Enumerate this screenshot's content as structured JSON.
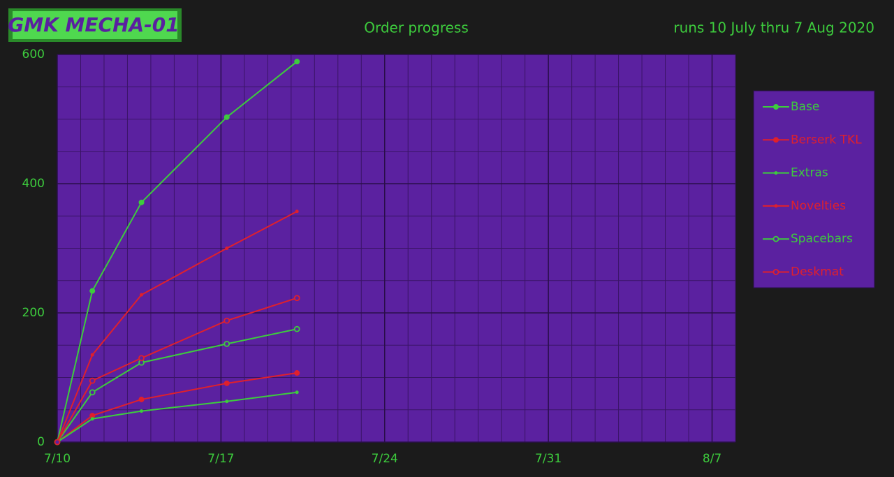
{
  "header": {
    "badge": "GMK MECHA-01"
  },
  "chart_data": {
    "type": "line",
    "title": "Order progress",
    "subtitle": "runs 10 July thru 7 Aug 2020",
    "x": [
      0,
      1.5,
      3.6,
      7.25,
      10.25
    ],
    "xlim": [
      0,
      29
    ],
    "xticks": [
      {
        "value": 0,
        "label": "7/10"
      },
      {
        "value": 7,
        "label": "7/17"
      },
      {
        "value": 14,
        "label": "7/24"
      },
      {
        "value": 21,
        "label": "7/31"
      },
      {
        "value": 28,
        "label": "8/7"
      }
    ],
    "xminorticks": [
      1,
      2,
      3,
      4,
      5,
      6,
      8,
      9,
      10,
      11,
      12,
      13,
      15,
      16,
      17,
      18,
      19,
      20,
      22,
      23,
      24,
      25,
      26,
      27,
      29
    ],
    "ylim": [
      0,
      600
    ],
    "yticks": [
      0,
      200,
      400,
      600
    ],
    "yminorticks": [
      50,
      100,
      150,
      250,
      300,
      350,
      450,
      500,
      550
    ],
    "grid": true,
    "legend": "right",
    "series": [
      {
        "name": "Base",
        "color": "#3dcc3d",
        "marker": "filled",
        "values": [
          0,
          234,
          371,
          503,
          589
        ]
      },
      {
        "name": "Berserk TKL",
        "color": "#e0202c",
        "marker": "filled",
        "values": [
          0,
          41,
          66,
          91,
          107
        ]
      },
      {
        "name": "Extras",
        "color": "#3dcc3d",
        "marker": "dot",
        "values": [
          0,
          36,
          48,
          63,
          77
        ]
      },
      {
        "name": "Novelties",
        "color": "#e0202c",
        "marker": "dot",
        "values": [
          0,
          135,
          228,
          300,
          357
        ]
      },
      {
        "name": "Spacebars",
        "color": "#3dcc3d",
        "marker": "open",
        "values": [
          0,
          77,
          123,
          152,
          175
        ]
      },
      {
        "name": "Deskmat",
        "color": "#e0202c",
        "marker": "open",
        "values": [
          0,
          95,
          130,
          188,
          223
        ]
      }
    ]
  }
}
